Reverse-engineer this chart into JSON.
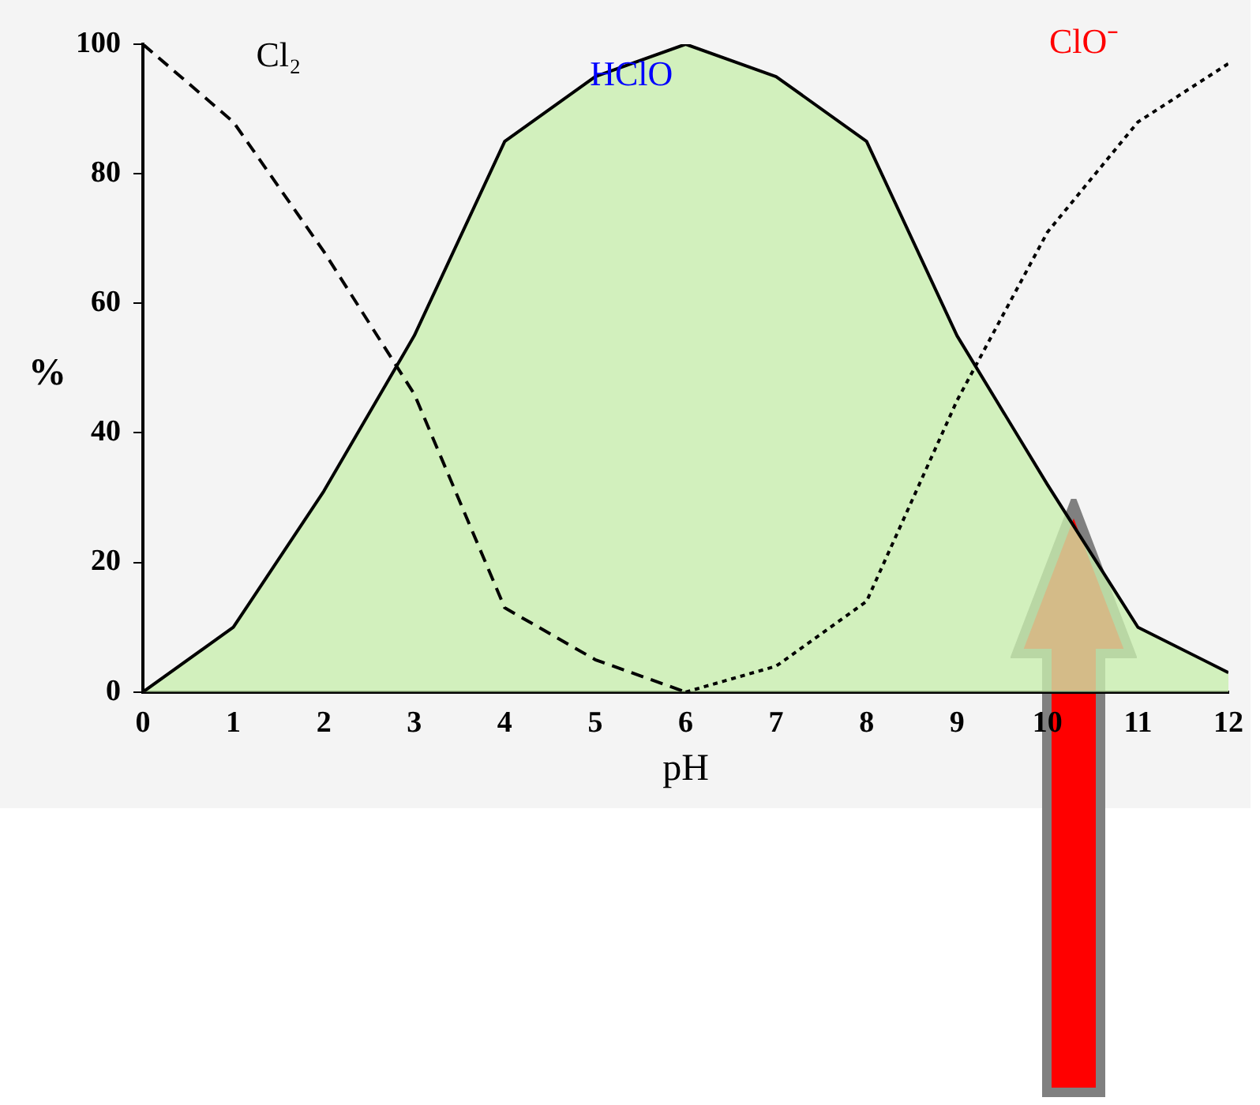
{
  "chart_data": {
    "type": "line",
    "xlabel": "pH",
    "ylabel": "%",
    "x": [
      0,
      1,
      2,
      3,
      4,
      5,
      6,
      7,
      8,
      9,
      10,
      11,
      12
    ],
    "xlim": [
      0,
      12
    ],
    "xticks": [
      0,
      1,
      2,
      3,
      4,
      5,
      6,
      7,
      8,
      9,
      10,
      11,
      12
    ],
    "ylim": [
      0,
      100
    ],
    "yticks": [
      0,
      20,
      40,
      60,
      80,
      100
    ],
    "series": [
      {
        "name": "Cl₂",
        "type": "line",
        "line_style": "dashed",
        "color": "#000000",
        "values": [
          100,
          88,
          68,
          46,
          13,
          5,
          0,
          null,
          null,
          null,
          null,
          null,
          null
        ]
      },
      {
        "name": "HClO",
        "type": "area",
        "color": "#c8eeae",
        "values": [
          0,
          10,
          31,
          55,
          85,
          95,
          100,
          95,
          85,
          55,
          32,
          10,
          3
        ]
      },
      {
        "name": "ClO⁻",
        "type": "line",
        "line_style": "dotted",
        "color": "#000000",
        "values": [
          null,
          null,
          null,
          null,
          null,
          null,
          0,
          4,
          14,
          45,
          71,
          88,
          97
        ]
      }
    ]
  }
}
